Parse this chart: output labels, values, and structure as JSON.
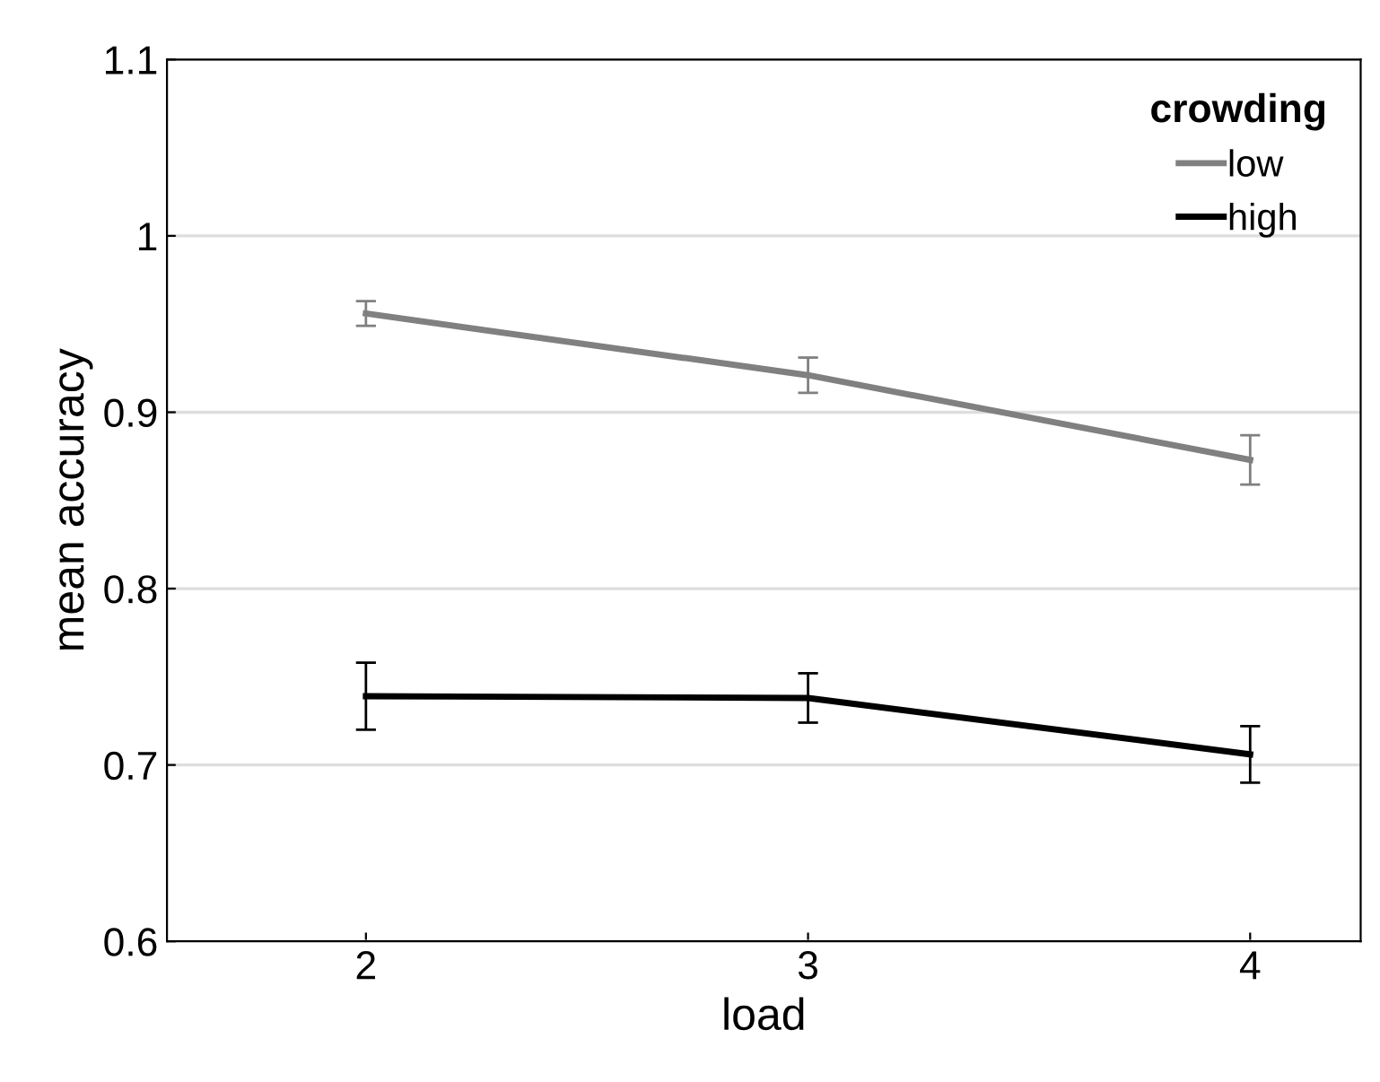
{
  "chart_data": {
    "type": "line",
    "xlabel": "load",
    "ylabel": "mean accuracy",
    "legend_title": "crowding",
    "legend": "top right",
    "grid": "y",
    "x": [
      2,
      3,
      4
    ],
    "series": [
      {
        "name": "low",
        "color": "#808080",
        "values": [
          0.956,
          0.921,
          0.873
        ],
        "errors": [
          0.007,
          0.01,
          0.014
        ]
      },
      {
        "name": "high",
        "color": "#000000",
        "values": [
          0.739,
          0.738,
          0.706
        ],
        "errors": [
          0.019,
          0.014,
          0.016
        ]
      }
    ],
    "xlim": [
      1.55,
      4.25
    ],
    "xticks": [
      2,
      3,
      4
    ],
    "ylim": [
      0.6,
      1.1
    ],
    "yticks": [
      0.6,
      0.7,
      0.8,
      0.9,
      1,
      1.1
    ],
    "marker": "none",
    "line_style": "solid"
  }
}
